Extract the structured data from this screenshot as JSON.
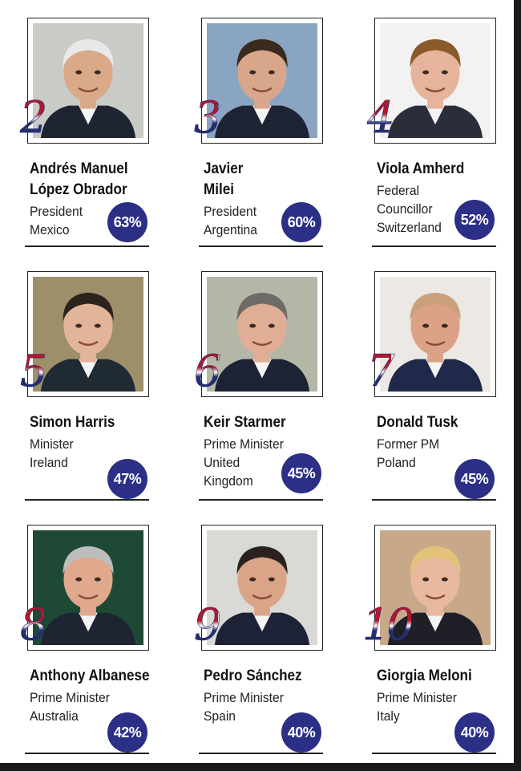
{
  "leaders": [
    {
      "rank": "2",
      "name_line1": "Andrés Manuel",
      "name_line2": "López Obrador",
      "role": [
        "President",
        "Mexico"
      ],
      "approval": "63%",
      "skin": "#d9a98a",
      "hair": "#e8e8e8",
      "suit": "#1f2433",
      "bg": "#c9cbc7"
    },
    {
      "rank": "3",
      "name_line1": "Javier",
      "name_line2": "Milei",
      "role": [
        "President",
        "Argentina"
      ],
      "approval": "60%",
      "skin": "#d8a68b",
      "hair": "#3b2a1e",
      "suit": "#1e2433",
      "bg": "#8aa5c2"
    },
    {
      "rank": "4",
      "name_line1": "Viola Amherd",
      "name_line2": "",
      "role": [
        "Federal",
        "Councillor",
        "Switzerland"
      ],
      "approval": "52%",
      "skin": "#e6b49a",
      "hair": "#8a5a2b",
      "suit": "#2a2d3a",
      "bg": "#f2f2f2"
    },
    {
      "rank": "5",
      "name_line1": "Simon Harris",
      "name_line2": "",
      "role": [
        "Minister",
        "Ireland"
      ],
      "approval": "47%",
      "skin": "#e2b49a",
      "hair": "#2d231d",
      "suit": "#1f2a33",
      "bg": "#9c8f6a"
    },
    {
      "rank": "6",
      "name_line1": "Keir Starmer",
      "name_line2": "",
      "role": [
        "Prime Minister",
        "United",
        "Kingdom"
      ],
      "approval": "45%",
      "skin": "#e0ad95",
      "hair": "#6d6a68",
      "suit": "#1d2334",
      "bg": "#b5b7a6"
    },
    {
      "rank": "7",
      "name_line1": "Donald Tusk",
      "name_line2": "",
      "role": [
        "Former  PM",
        "Poland"
      ],
      "approval": "45%",
      "skin": "#dca287",
      "hair": "#c9a07a",
      "suit": "#1f2a4a",
      "bg": "#ece8e4"
    },
    {
      "rank": "8",
      "name_line1": "Anthony Albanese",
      "name_line2": "",
      "role": [
        "Prime Minister",
        "Australia"
      ],
      "approval": "42%",
      "skin": "#e0a98d",
      "hair": "#bdbdbd",
      "suit": "#1f2433",
      "bg": "#1e4a35"
    },
    {
      "rank": "9",
      "name_line1": "Pedro Sánchez",
      "name_line2": "",
      "role": [
        "Prime Minister",
        "Spain"
      ],
      "approval": "40%",
      "skin": "#d9a487",
      "hair": "#2b2220",
      "suit": "#1d2236",
      "bg": "#d9d9d6"
    },
    {
      "rank": "10",
      "name_line1": "Giorgia Meloni",
      "name_line2": "",
      "role": [
        "Prime Minister",
        "Italy"
      ],
      "approval": "40%",
      "skin": "#e8b99e",
      "hair": "#e3c27a",
      "suit": "#1f1f28",
      "bg": "#c7a98a"
    }
  ]
}
